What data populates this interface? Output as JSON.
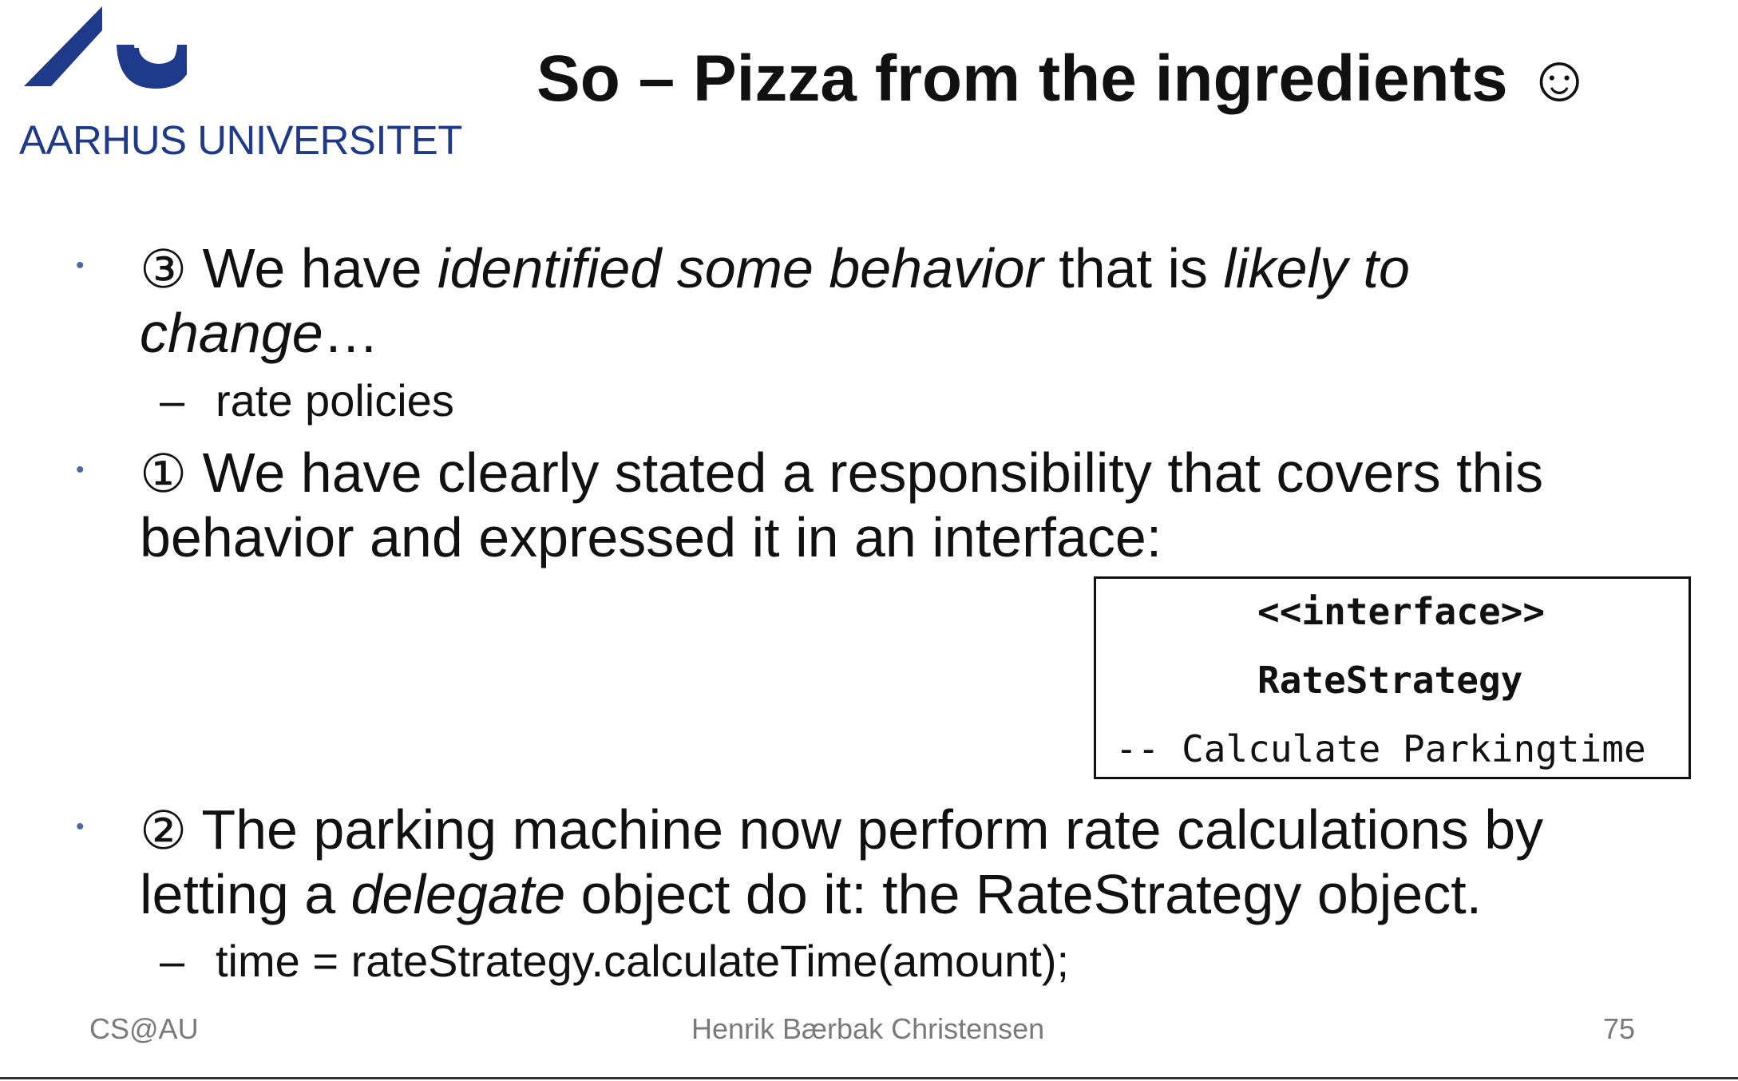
{
  "logo": {
    "text": "AARHUS UNIVERSITET",
    "color": "#1f3a8a"
  },
  "title": "So –  Pizza from the ingredients ☺",
  "bullets": [
    {
      "num": "③",
      "segments": [
        {
          "text": " We have ",
          "italic": false
        },
        {
          "text": "identified some behavior",
          "italic": true
        },
        {
          "text": "  that is ",
          "italic": false
        },
        {
          "text": "likely to",
          "italic": true
        }
      ],
      "line2": [
        {
          "text": "change",
          "italic": true
        },
        {
          "text": "…",
          "italic": false
        }
      ],
      "sub": "rate policies"
    },
    {
      "num": "①",
      "line1": " We have clearly stated a responsibility that covers this",
      "line2": "behavior and expressed it in an interface:"
    },
    {
      "num": "②",
      "line1": " The parking machine now perform rate calculations by",
      "line2_a": "letting a ",
      "line2_b": "delegate",
      "line2_c": " object do it: the RateStrategy object.",
      "sub": "time = rateStrategy.calculateTime(amount);"
    }
  ],
  "interface_box": {
    "stereotype": "<<interface>>",
    "name": "RateStrategy",
    "method": "-- Calculate Parkingtime"
  },
  "footer": {
    "left": "CS@AU",
    "center": "Henrik Bærbak Christensen",
    "right": "75"
  },
  "bullet_char": "•",
  "dash_char": "–",
  "colors": {
    "bullet": "#4a6aa0",
    "footer": "#7a7a7a",
    "text": "#111111"
  }
}
